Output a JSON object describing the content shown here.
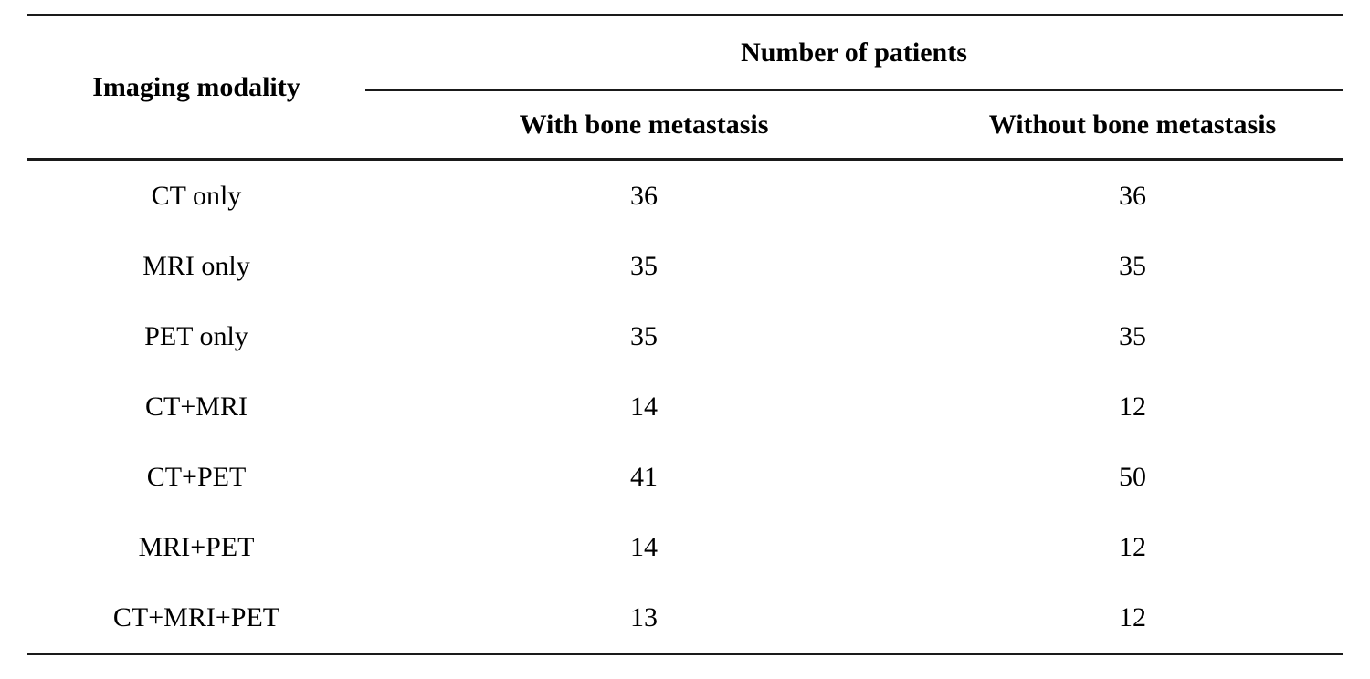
{
  "page": {
    "background_color": "#ffffff",
    "text_color": "#000000",
    "rule_color": "#1a1a1a"
  },
  "table": {
    "corner_header": "Imaging modality",
    "group_header": "Number of patients",
    "sub_headers": [
      "With bone metastasis",
      "Without bone metastasis"
    ],
    "rows": [
      {
        "modality": "CT only",
        "with_bm": "36",
        "without_bm": "36"
      },
      {
        "modality": "MRI only",
        "with_bm": "35",
        "without_bm": "35"
      },
      {
        "modality": "PET only",
        "with_bm": "35",
        "without_bm": "35"
      },
      {
        "modality": "CT+MRI",
        "with_bm": "14",
        "without_bm": "12"
      },
      {
        "modality": "CT+PET",
        "with_bm": "41",
        "without_bm": "50"
      },
      {
        "modality": "MRI+PET",
        "with_bm": "14",
        "without_bm": "12"
      },
      {
        "modality": "CT+MRI+PET",
        "with_bm": "13",
        "without_bm": "12"
      }
    ]
  },
  "chart_data": {
    "type": "table",
    "title": "",
    "columns": [
      "Imaging modality",
      "With bone metastasis",
      "Without bone metastasis"
    ],
    "column_group": {
      "label": "Number of patients",
      "spans": [
        "With bone metastasis",
        "Without bone metastasis"
      ]
    },
    "categories": [
      "CT only",
      "MRI only",
      "PET only",
      "CT+MRI",
      "CT+PET",
      "MRI+PET",
      "CT+MRI+PET"
    ],
    "series": [
      {
        "name": "With bone metastasis",
        "values": [
          36,
          35,
          35,
          14,
          41,
          14,
          13
        ]
      },
      {
        "name": "Without bone metastasis",
        "values": [
          36,
          35,
          35,
          12,
          50,
          12,
          12
        ]
      }
    ]
  }
}
